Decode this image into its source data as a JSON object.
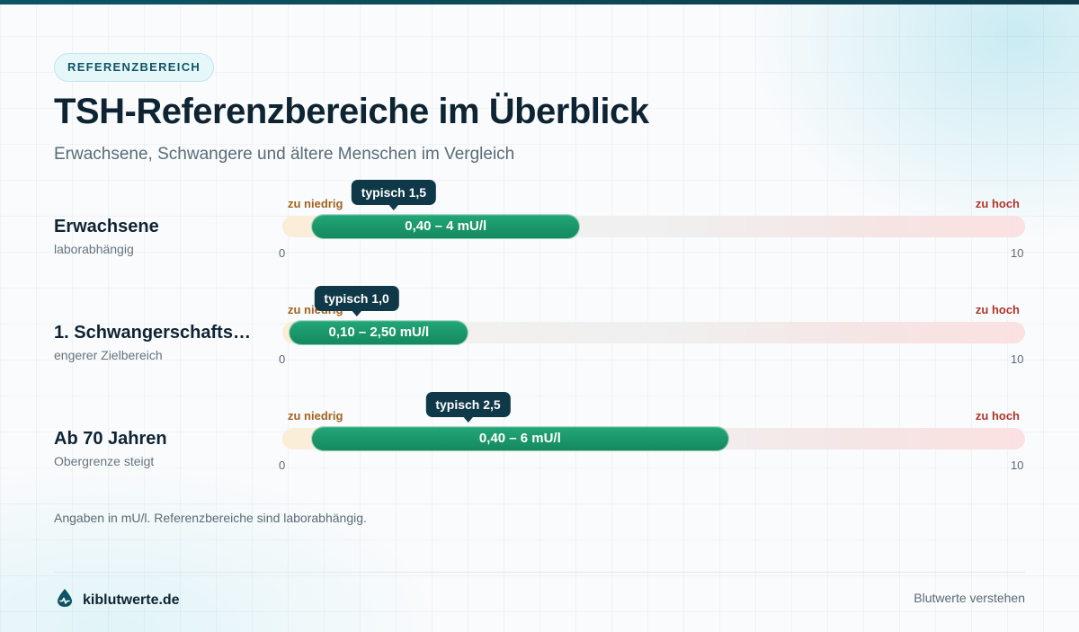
{
  "header": {
    "badge": "REFERENZBEREICH",
    "title": "TSH-Referenzbereiche im Überblick",
    "subtitle": "Erwachsene, Schwangere und ältere Menschen im Vergleich"
  },
  "chart_data": {
    "type": "bar",
    "orientation": "horizontal-range",
    "unit": "mU/l",
    "xlim": [
      0,
      10
    ],
    "tick_labels": [
      "0",
      "10"
    ],
    "low_label": "zu niedrig",
    "high_label": "zu hoch",
    "rows": [
      {
        "label": "Erwachsene",
        "sublabel": "laborabhängig",
        "low": 0.4,
        "high": 4.0,
        "typical": 1.5,
        "range_text": "0,40 – 4 mU/l",
        "typical_text": "typisch 1,5"
      },
      {
        "label": "1. Schwangerschafts…",
        "sublabel": "engerer Zielbereich",
        "low": 0.1,
        "high": 2.5,
        "typical": 1.0,
        "range_text": "0,10 – 2,50 mU/l",
        "typical_text": "typisch 1,0"
      },
      {
        "label": "Ab 70 Jahren",
        "sublabel": "Obergrenze steigt",
        "low": 0.4,
        "high": 6.0,
        "typical": 2.5,
        "range_text": "0,40 – 6 mU/l",
        "typical_text": "typisch 2,5"
      }
    ]
  },
  "footer": {
    "note": "Angaben in mU/l. Referenzbereiche sind laborabhängig.",
    "brand": "kiblutwerte.de",
    "tagline": "Blutwerte verstehen"
  },
  "colors": {
    "accent": "#0f3848",
    "range": "#18946a",
    "low": "#a4621f",
    "high": "#b0342c"
  }
}
